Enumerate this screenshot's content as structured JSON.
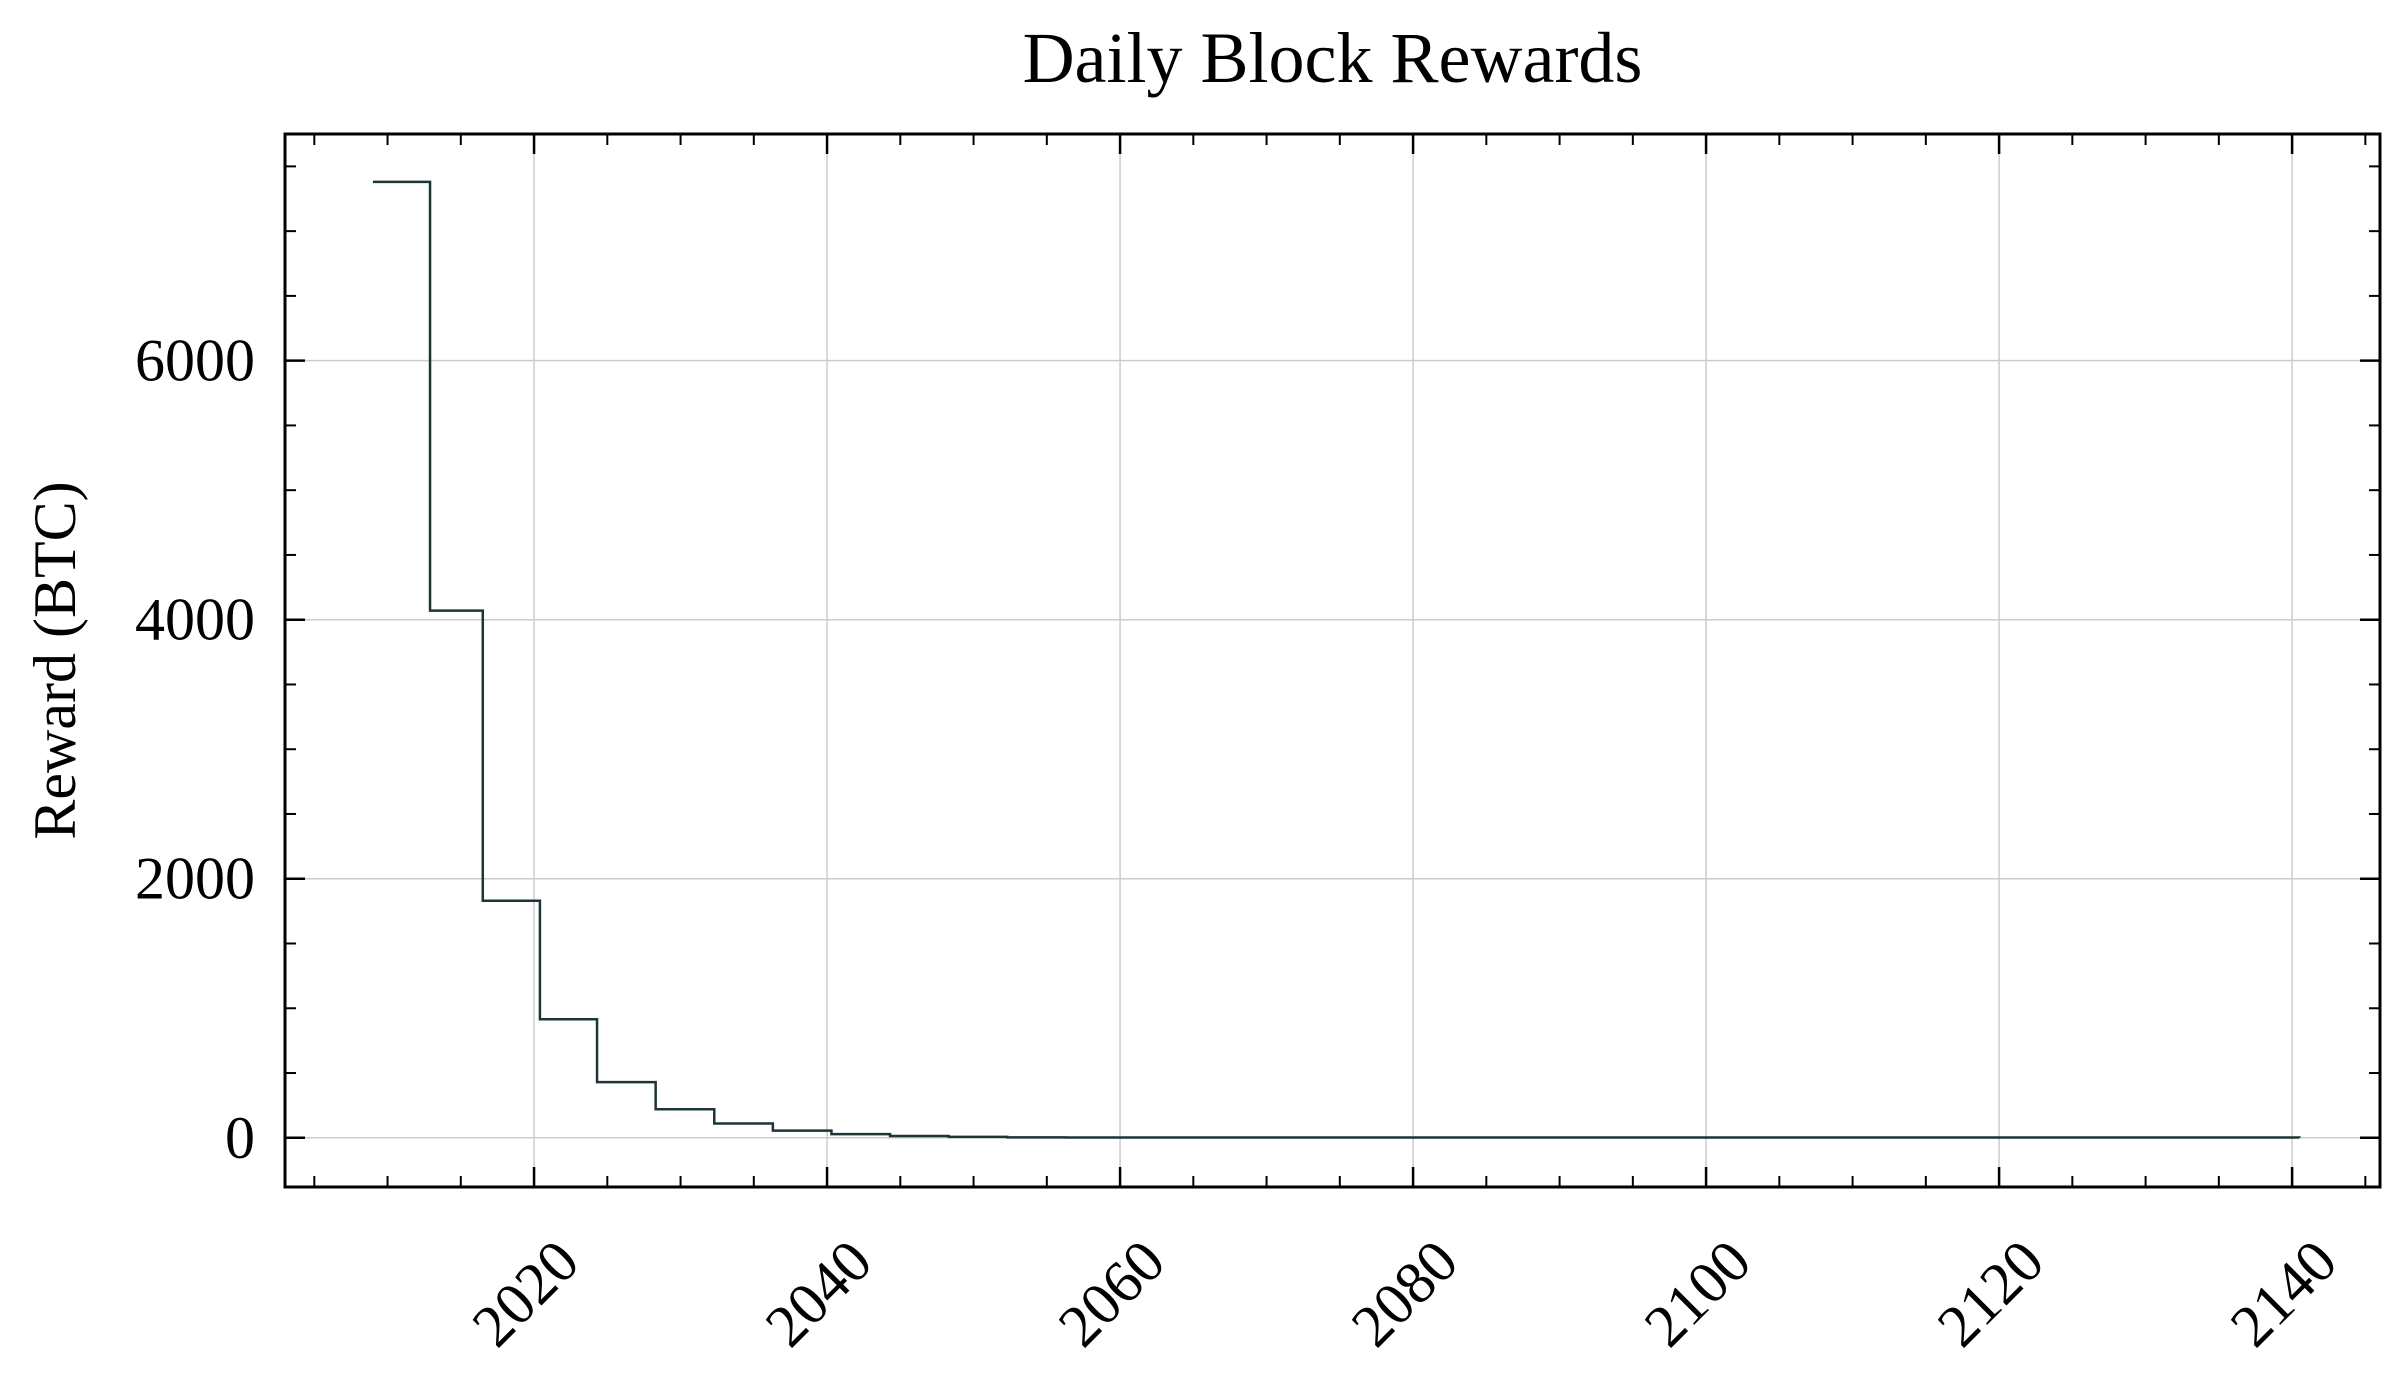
{
  "chart_data": {
    "type": "line",
    "step": true,
    "title": "Daily Block Rewards",
    "xlabel": "",
    "ylabel": "Reward (BTC)",
    "xlim": [
      2003,
      2146
    ],
    "ylim": [
      -380,
      7750
    ],
    "x_ticks": [
      2020,
      2040,
      2060,
      2080,
      2100,
      2120,
      2140
    ],
    "x_tick_labels": [
      "2020",
      "2040",
      "2060",
      "2080",
      "2100",
      "2120",
      "2140"
    ],
    "y_ticks": [
      0,
      2000,
      4000,
      6000
    ],
    "y_tick_labels": [
      "0",
      "2000",
      "4000",
      "6000"
    ],
    "x_minor_step": 5,
    "y_minor_step": 500,
    "grid": true,
    "legend": "none",
    "colors": {
      "line": "#1c3638",
      "grid": "#cccccc",
      "axis": "#000000"
    },
    "series": [
      {
        "x": [
          2009,
          2012.9,
          2016.5,
          2020.4,
          2024.3,
          2028.3,
          2032.3,
          2036.3,
          2040.3,
          2044.3,
          2048.3,
          2052.3,
          2056.3,
          2140.5
        ],
        "y": [
          7380,
          4070,
          1830,
          915,
          430,
          220,
          110,
          55,
          28,
          14,
          7,
          3.5,
          1.7,
          0
        ]
      }
    ]
  }
}
